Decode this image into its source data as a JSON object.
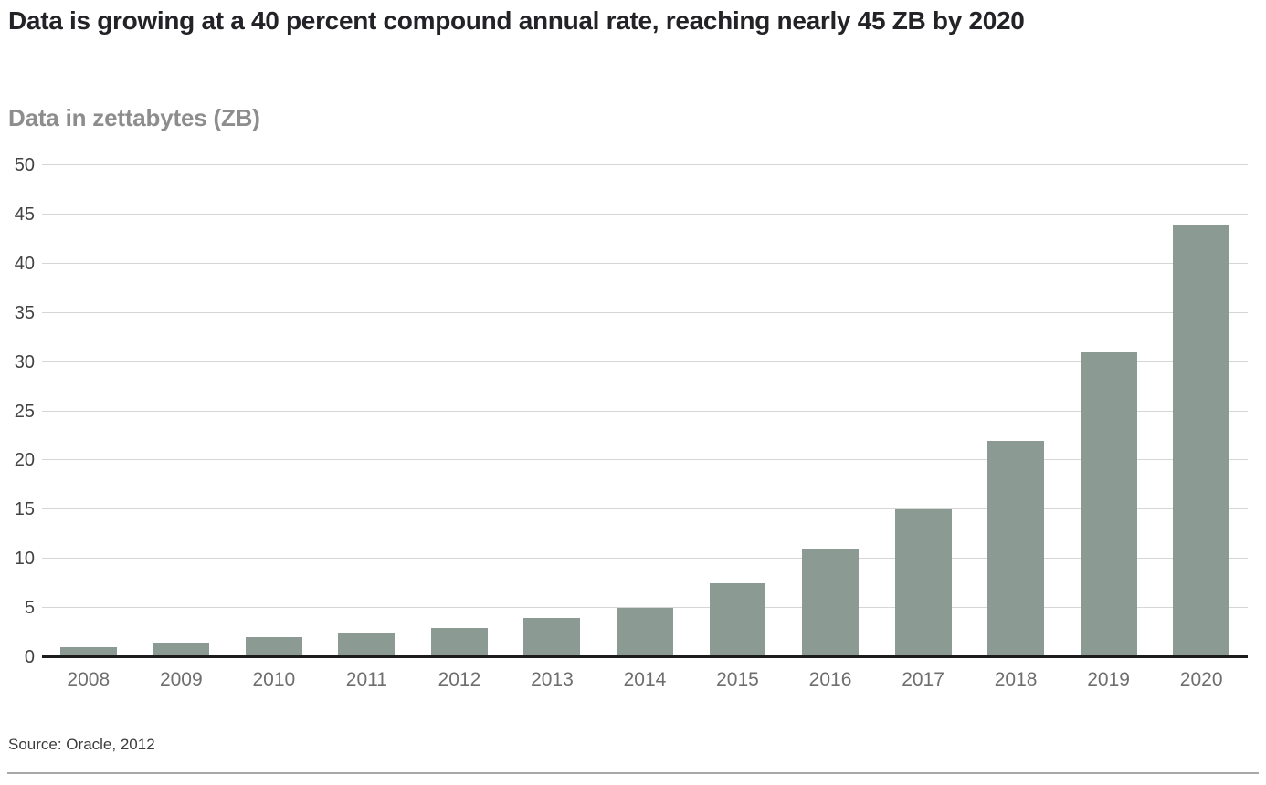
{
  "page": {
    "source": "Source: Oracle, 2012"
  },
  "chart_data": {
    "type": "bar",
    "title": "Data is growing at a 40 percent compound annual rate, reaching nearly 45 ZB by 2020",
    "ylabel": "Data in zettabytes (ZB)",
    "xlabel": "",
    "categories": [
      "2008",
      "2009",
      "2010",
      "2011",
      "2012",
      "2013",
      "2014",
      "2015",
      "2016",
      "2017",
      "2018",
      "2019",
      "2020"
    ],
    "values": [
      1,
      1.5,
      2,
      2.5,
      3,
      4,
      5,
      7.5,
      11,
      15,
      22,
      31,
      44
    ],
    "ylim": [
      0,
      50
    ],
    "y_ticks": [
      0,
      5,
      10,
      15,
      20,
      25,
      30,
      35,
      40,
      45,
      50
    ],
    "grid": "horizontal",
    "legend": "none",
    "colors": {
      "bar": "#8B9A92",
      "axis_line": "#1d1d1f",
      "gridline": "#d6d6d6",
      "title_text": "#232327",
      "ylabel_text": "#8d8d8d",
      "y_tick_text": "#434343",
      "x_tick_text": "#6e6e6e",
      "source_text": "#3c3c3c",
      "bottom_rule": "#a8a8a8"
    }
  }
}
